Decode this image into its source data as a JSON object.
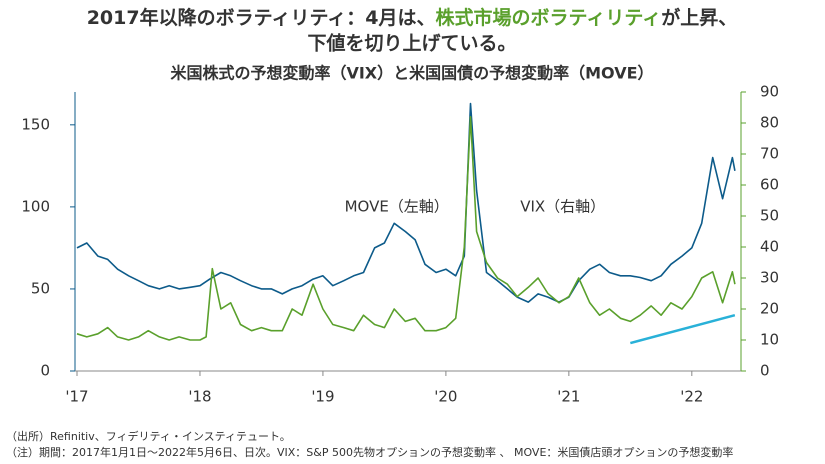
{
  "chart_data": {
    "type": "line",
    "title_parts": [
      "2017年以降のボラティリティ：4月は、",
      "株式市場のボラティリティ",
      "が上昇、"
    ],
    "title_line2": "下値を切り上げている。",
    "title_highlight_color": "#5aa02c",
    "subtitle": "米国株式の予想変動率（VIX）と米国国債の予想変動率（MOVE）",
    "annotations": [
      {
        "text": "MOVE（左軸）",
        "x": 2019.6,
        "y": 100,
        "color": "#0d5b8a"
      },
      {
        "text": "VIX（右軸）",
        "x": 2020.95,
        "y": 100,
        "color": "#5aa02c"
      }
    ],
    "footnotes": [
      "（出所）Refinitiv、フィデリティ・インスティテュート。",
      "（注）期間：2017年1月1日～2022年5月6日、日次。VIX：S&P 500先物オプションの予想変動率 、 MOVE：米国債店頭オプションの予想変動率"
    ],
    "xlim": [
      2017,
      2022.4
    ],
    "xticks": [
      {
        "value": 2017,
        "label": "'17"
      },
      {
        "value": 2018,
        "label": "'18"
      },
      {
        "value": 2019,
        "label": "'19"
      },
      {
        "value": 2020,
        "label": "'20"
      },
      {
        "value": 2021,
        "label": "'21"
      },
      {
        "value": 2022,
        "label": "'22"
      }
    ],
    "ylim": [
      0,
      170
    ],
    "yticks": [
      0,
      50,
      100,
      150
    ],
    "y2lim": [
      0,
      90
    ],
    "y2ticks": [
      0,
      10,
      20,
      30,
      40,
      50,
      60,
      70,
      80,
      90
    ],
    "y_color": "#0d5b8a",
    "y2_color": "#5aa02c",
    "series": [
      {
        "name": "MOVE",
        "color": "#0d5b8a",
        "axis": "y",
        "x": [
          2017.0,
          2017.08,
          2017.17,
          2017.25,
          2017.33,
          2017.42,
          2017.5,
          2017.58,
          2017.67,
          2017.75,
          2017.83,
          2017.92,
          2018.0,
          2018.08,
          2018.17,
          2018.25,
          2018.33,
          2018.42,
          2018.5,
          2018.58,
          2018.67,
          2018.75,
          2018.83,
          2018.92,
          2019.0,
          2019.08,
          2019.17,
          2019.25,
          2019.33,
          2019.42,
          2019.5,
          2019.58,
          2019.67,
          2019.75,
          2019.83,
          2019.92,
          2020.0,
          2020.08,
          2020.15,
          2020.2,
          2020.25,
          2020.33,
          2020.42,
          2020.5,
          2020.58,
          2020.67,
          2020.75,
          2020.83,
          2020.92,
          2021.0,
          2021.08,
          2021.17,
          2021.25,
          2021.33,
          2021.42,
          2021.5,
          2021.58,
          2021.67,
          2021.75,
          2021.83,
          2021.92,
          2022.0,
          2022.08,
          2022.17,
          2022.25,
          2022.33,
          2022.35
        ],
        "values": [
          75,
          78,
          70,
          68,
          62,
          58,
          55,
          52,
          50,
          52,
          50,
          51,
          52,
          56,
          60,
          58,
          55,
          52,
          50,
          50,
          47,
          50,
          52,
          56,
          58,
          52,
          55,
          58,
          60,
          75,
          78,
          90,
          85,
          80,
          65,
          60,
          62,
          58,
          70,
          163,
          110,
          60,
          55,
          50,
          45,
          42,
          47,
          45,
          42,
          45,
          55,
          62,
          65,
          60,
          58,
          58,
          57,
          55,
          58,
          65,
          70,
          75,
          90,
          130,
          105,
          130,
          122
        ]
      },
      {
        "name": "VIX",
        "color": "#5aa02c",
        "axis": "y2",
        "x": [
          2017.0,
          2017.08,
          2017.17,
          2017.25,
          2017.33,
          2017.42,
          2017.5,
          2017.58,
          2017.67,
          2017.75,
          2017.83,
          2017.92,
          2018.0,
          2018.05,
          2018.1,
          2018.17,
          2018.25,
          2018.33,
          2018.42,
          2018.5,
          2018.58,
          2018.67,
          2018.75,
          2018.83,
          2018.92,
          2019.0,
          2019.08,
          2019.17,
          2019.25,
          2019.33,
          2019.42,
          2019.5,
          2019.58,
          2019.67,
          2019.75,
          2019.83,
          2019.92,
          2020.0,
          2020.08,
          2020.15,
          2020.2,
          2020.25,
          2020.33,
          2020.42,
          2020.5,
          2020.58,
          2020.67,
          2020.75,
          2020.83,
          2020.92,
          2021.0,
          2021.08,
          2021.17,
          2021.25,
          2021.33,
          2021.42,
          2021.5,
          2021.58,
          2021.67,
          2021.75,
          2021.83,
          2021.92,
          2022.0,
          2022.08,
          2022.17,
          2022.25,
          2022.33,
          2022.35
        ],
        "values": [
          12,
          11,
          12,
          14,
          11,
          10,
          11,
          13,
          11,
          10,
          11,
          10,
          10,
          11,
          33,
          20,
          22,
          15,
          13,
          14,
          13,
          13,
          20,
          18,
          28,
          20,
          15,
          14,
          13,
          18,
          15,
          14,
          20,
          16,
          17,
          13,
          13,
          14,
          17,
          40,
          82,
          45,
          35,
          30,
          28,
          24,
          27,
          30,
          25,
          22,
          24,
          30,
          22,
          18,
          20,
          17,
          16,
          18,
          21,
          18,
          22,
          20,
          24,
          30,
          32,
          22,
          32,
          28
        ]
      }
    ],
    "trend_line": {
      "x": [
        2021.5,
        2022.35
      ],
      "values": [
        9,
        18
      ],
      "color": "#29b1d8",
      "axis": "y2"
    }
  }
}
